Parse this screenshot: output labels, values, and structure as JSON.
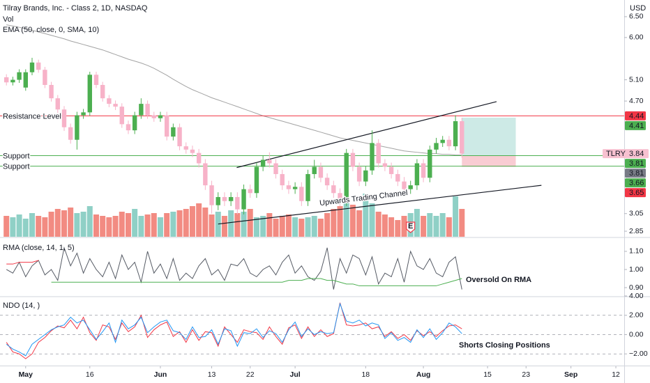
{
  "chart_data": [
    {
      "type": "candlestick",
      "title": "Tilray Brands, Inc. - Class 2, 1D, NASDAQ",
      "currency": "USD",
      "volume_label": "Vol",
      "ema_label": "EMA (50, close, 0, SMA, 10)",
      "log_scale": true,
      "ylim": [
        2.79,
        6.93
      ],
      "yticks": [
        {
          "value": 6.5,
          "label": "6.50"
        },
        {
          "value": 6,
          "label": "6.00"
        },
        {
          "value": 5.1,
          "label": "5.10"
        },
        {
          "value": 4.7,
          "label": "4.70"
        },
        3.05,
        2.85
      ],
      "xlim": [
        -1,
        96.3
      ],
      "xticks": [
        {
          "value": 3,
          "label": "May"
        },
        {
          "value": 13,
          "label": "16"
        },
        {
          "value": 24,
          "label": "Jun"
        },
        {
          "value": 32,
          "label": "13"
        },
        {
          "value": 38,
          "label": "22"
        },
        {
          "value": 45,
          "label": "Jul"
        },
        {
          "value": 56,
          "label": "18"
        },
        {
          "value": 65,
          "label": "Aug"
        },
        {
          "value": 75,
          "label": "15"
        },
        {
          "value": 81,
          "label": "23"
        },
        {
          "value": 88,
          "label": "Sep"
        },
        {
          "value": 95,
          "label": "12"
        }
      ],
      "up_color": "#4caf50",
      "down_color": "#f7b2c8",
      "volume_up_color": "#8fd0c6",
      "volume_down_color": "#f28b82",
      "open": [
        5.15,
        5.05,
        5.1,
        4.95,
        5.25,
        5.45,
        5.3,
        5.0,
        4.75,
        4.55,
        4.25,
        4.05,
        4.45,
        4.5,
        5.2,
        5.0,
        4.75,
        4.65,
        4.6,
        4.3,
        4.2,
        4.45,
        4.65,
        4.45,
        4.4,
        4.45,
        4.1,
        4.25,
        3.95,
        3.9,
        3.85,
        3.7,
        3.4,
        3.15,
        3.25,
        3.2,
        3.25,
        3.1,
        3.35,
        3.3,
        3.65,
        3.75,
        3.7,
        3.55,
        3.4,
        3.35,
        3.38,
        3.2,
        3.55,
        3.65,
        3.5,
        3.4,
        3.3,
        3.2,
        3.85,
        3.65,
        3.45,
        3.6,
        4.0,
        3.7,
        3.65,
        3.55,
        3.45,
        3.35,
        3.4,
        3.7,
        3.5,
        3.9,
        4.0,
        4.05,
        3.95,
        4.35
      ],
      "high": [
        5.21,
        5.16,
        5.31,
        5.31,
        5.55,
        5.51,
        5.36,
        5.06,
        4.81,
        4.61,
        4.31,
        4.51,
        4.56,
        5.26,
        5.26,
        5.06,
        4.81,
        4.71,
        4.66,
        4.36,
        4.51,
        4.75,
        4.71,
        4.51,
        4.51,
        4.51,
        4.31,
        4.31,
        4.01,
        3.96,
        3.91,
        3.76,
        3.46,
        3.31,
        3.31,
        3.31,
        3.31,
        3.41,
        3.41,
        3.71,
        3.81,
        3.86,
        3.76,
        3.61,
        3.46,
        3.44,
        3.44,
        3.61,
        3.75,
        3.71,
        3.56,
        3.46,
        3.36,
        3.91,
        3.91,
        3.71,
        3.66,
        4.2,
        4.06,
        3.76,
        3.71,
        3.61,
        3.51,
        3.46,
        3.76,
        3.76,
        3.96,
        4.08,
        4.11,
        4.11,
        4.45,
        4.41
      ],
      "low": [
        4.99,
        4.99,
        5.04,
        4.89,
        5.19,
        5.24,
        4.94,
        4.69,
        4.49,
        4.19,
        3.99,
        3.9,
        4.39,
        4.44,
        4.94,
        4.69,
        4.59,
        4.54,
        4.24,
        4.14,
        4.14,
        4.39,
        4.39,
        4.34,
        4.34,
        4.04,
        4.04,
        3.89,
        3.84,
        3.79,
        3.64,
        3.34,
        3.05,
        3.09,
        3.14,
        3.14,
        3.04,
        3.04,
        3.24,
        3.24,
        3.59,
        3.64,
        3.49,
        3.34,
        3.29,
        3.29,
        3.14,
        3.14,
        3.49,
        3.44,
        3.34,
        3.24,
        3.14,
        3.14,
        3.59,
        3.39,
        3.39,
        3.54,
        3.64,
        3.59,
        3.49,
        3.39,
        3.29,
        3.29,
        3.34,
        3.44,
        3.44,
        3.84,
        3.94,
        3.89,
        3.89,
        3.78
      ],
      "close": [
        5.05,
        5.1,
        5.25,
        5.25,
        5.45,
        5.3,
        5.0,
        4.75,
        4.55,
        4.25,
        4.05,
        4.45,
        4.5,
        5.2,
        5.0,
        4.75,
        4.65,
        4.6,
        4.3,
        4.2,
        4.45,
        4.65,
        4.45,
        4.4,
        4.45,
        4.1,
        4.25,
        3.95,
        3.9,
        3.85,
        3.7,
        3.4,
        3.15,
        3.25,
        3.2,
        3.25,
        3.1,
        3.35,
        3.3,
        3.65,
        3.75,
        3.7,
        3.55,
        3.4,
        3.35,
        3.38,
        3.2,
        3.55,
        3.65,
        3.5,
        3.4,
        3.3,
        3.2,
        3.85,
        3.65,
        3.45,
        3.6,
        4.0,
        3.7,
        3.65,
        3.55,
        3.45,
        3.35,
        3.4,
        3.7,
        3.5,
        3.9,
        4.0,
        4.05,
        3.95,
        4.35,
        3.84
      ],
      "volume": [
        30,
        28,
        32,
        26,
        34,
        30,
        28,
        36,
        40,
        38,
        42,
        34,
        36,
        44,
        32,
        30,
        28,
        30,
        36,
        34,
        40,
        30,
        32,
        34,
        28,
        34,
        36,
        38,
        40,
        44,
        48,
        42,
        32,
        36,
        30,
        38,
        34,
        36,
        40,
        28,
        30,
        34,
        26,
        30,
        32,
        28,
        26,
        28,
        30,
        26,
        34,
        40,
        44,
        56,
        46,
        38,
        62,
        48,
        36,
        32,
        28,
        24,
        30,
        34,
        40,
        30,
        34,
        30,
        34,
        28,
        58,
        40
      ],
      "ema": {
        "color": "#a3a3a3",
        "values": [
          6.3,
          6.27,
          6.24,
          6.21,
          6.17,
          6.13,
          6.09,
          6.05,
          6.01,
          5.97,
          5.92,
          5.88,
          5.84,
          5.8,
          5.76,
          5.72,
          5.67,
          5.62,
          5.57,
          5.52,
          5.48,
          5.44,
          5.39,
          5.33,
          5.26,
          5.19,
          5.11,
          5.04,
          4.97,
          4.91,
          4.86,
          4.81,
          4.76,
          4.72,
          4.68,
          4.64,
          4.6,
          4.56,
          4.52,
          4.48,
          4.44,
          4.41,
          4.38,
          4.35,
          4.32,
          4.29,
          4.26,
          4.23,
          4.2,
          4.17,
          4.14,
          4.11,
          4.08,
          4.06,
          4.04,
          4.02,
          4.0,
          3.98,
          3.96,
          3.94,
          3.92,
          3.9,
          3.88,
          3.87,
          3.86,
          3.85,
          3.84,
          3.84,
          3.83,
          3.83,
          3.82,
          3.82
        ]
      },
      "levels": [
        {
          "label": "Resistance Level",
          "value": 4.44,
          "color": "#f23645"
        },
        {
          "label": "Support",
          "value": 3.81,
          "color": "#4caf50"
        },
        {
          "label": "Support",
          "value": 3.66,
          "color": "#4caf50"
        }
      ],
      "trendlines": [
        {
          "x": [
            35.9,
            76.4
          ],
          "y": [
            3.64,
            4.69
          ],
          "color": "#131722"
        },
        {
          "x": [
            33.0,
            83.4
          ],
          "y": [
            2.93,
            3.4
          ],
          "color": "#131722"
        }
      ],
      "channel_label": "Upwards Trading Channel",
      "position": {
        "x": [
          71,
          79.4
        ],
        "entry": 3.81,
        "target": 4.41,
        "stop": 3.65,
        "profit_color": "#cdeae6",
        "loss_color": "#f9ccd3"
      },
      "earnings": {
        "x": 63,
        "label": "E",
        "color": "#f23645"
      },
      "price_tags": [
        {
          "value": 4.44,
          "color": "#f23645"
        },
        {
          "value": 4.41,
          "color": "#4caf50"
        },
        {
          "name": "TLRY",
          "value": 3.84,
          "color": "#f7c1d0",
          "text_color": "#131722"
        },
        {
          "value": 3.81,
          "color": "#4caf50"
        },
        {
          "value": 3.81,
          "color": "#787b86"
        },
        {
          "value": 3.66,
          "color": "#4caf50"
        },
        {
          "value": 3.65,
          "color": "#f23645"
        }
      ]
    },
    {
      "type": "line",
      "title": "RMA (close, 14, 1, 5)",
      "ylim": [
        0.854,
        1.169
      ],
      "yticks": [
        {
          "value": 1.1,
          "label": "1.10"
        },
        {
          "value": 1,
          "label": "1.00"
        },
        {
          "value": 0.9,
          "label": "0.90"
        }
      ],
      "annotation": "Oversold On RMA",
      "annotation_color": "#4caf50",
      "series": [
        {
          "color": "#555a64",
          "values": [
            1.0,
            0.98,
            1.04,
            0.96,
            1.02,
            1.05,
            0.97,
            1.0,
            0.94,
            1.12,
            1.02,
            1.09,
            0.98,
            1.06,
            1.0,
            0.96,
            1.04,
            0.95,
            1.08,
            1.0,
            1.04,
            0.93,
            1.1,
            0.98,
            1.03,
            0.95,
            1.06,
            0.94,
            0.98,
            0.95,
            1.02,
            1.06,
            0.97,
            1.0,
            0.94,
            1.03,
            1.02,
            1.06,
            0.98,
            0.96,
            1.0,
            1.02,
            0.97,
            1.04,
            1.08,
            0.98,
            1.02,
            0.96,
            0.94,
            0.99,
            1.12,
            0.89,
            1.06,
            0.98,
            1.08,
            1.06,
            0.97,
            1.07,
            0.92,
            0.98,
            0.96,
            1.06,
            0.93,
            1.1,
            1.02,
            1.0,
            1.06,
            0.98,
            0.96,
            1.04,
            1.07,
            0.89
          ]
        },
        {
          "color": "#4caf50",
          "values": [
            null,
            null,
            null,
            null,
            null,
            null,
            null,
            0.93,
            0.93,
            0.93,
            0.93,
            0.93,
            0.93,
            0.93,
            0.93,
            0.93,
            0.93,
            0.93,
            0.93,
            0.93,
            0.93,
            0.93,
            0.93,
            0.93,
            0.93,
            0.93,
            0.93,
            0.93,
            0.93,
            0.93,
            0.93,
            0.93,
            0.93,
            0.93,
            0.93,
            0.93,
            0.93,
            0.93,
            0.93,
            0.93,
            0.93,
            0.93,
            0.93,
            0.93,
            0.94,
            0.94,
            0.94,
            0.95,
            0.95,
            0.95,
            0.94,
            0.94,
            0.93,
            0.92,
            0.92,
            0.91,
            0.91,
            0.91,
            0.91,
            0.91,
            0.91,
            0.91,
            0.91,
            0.91,
            0.91,
            0.91,
            0.91,
            0.91,
            0.92,
            0.93,
            0.94,
            0.95
          ]
        },
        {
          "color": "#f23645",
          "values": [
            1.03,
            1.03,
            1.04,
            1.04,
            1.04,
            1.05,
            null,
            null,
            null,
            null,
            null,
            null,
            null,
            null,
            null,
            null,
            null,
            null,
            null,
            null,
            null,
            null,
            null,
            null,
            null,
            null,
            null,
            null,
            null,
            null,
            null,
            null,
            null,
            null,
            null,
            null,
            null,
            null,
            null,
            null,
            null,
            null,
            null,
            null,
            null,
            null,
            null,
            null,
            null,
            null,
            null,
            null,
            null,
            null,
            null,
            null,
            null,
            null,
            null,
            null,
            null,
            null,
            null,
            null,
            null,
            null,
            null,
            null,
            null,
            null,
            null,
            null
          ]
        }
      ]
    },
    {
      "type": "line",
      "title": "NDO (14, )",
      "ylim": [
        -3.21,
        4.0
      ],
      "yticks": [
        {
          "value": 4,
          "label": "4.00"
        },
        {
          "value": 2,
          "label": "2.00"
        },
        {
          "value": 0,
          "label": "0.00"
        },
        {
          "value": -2,
          "label": "−2.00"
        }
      ],
      "grid": true,
      "annotation": "Shorts Closing Positions",
      "annotation_color": "#4caf50",
      "series": [
        {
          "color": "#f23645",
          "values": [
            -0.8,
            -1.8,
            -2.0,
            -2.5,
            -2.0,
            -0.8,
            -0.3,
            0.4,
            0.9,
            0.7,
            1.5,
            0.6,
            1.8,
            0.2,
            -0.6,
            1.0,
            0.8,
            -0.5,
            1.2,
            0.3,
            0.8,
            2.0,
            -0.3,
            0.5,
            1.0,
            1.3,
            -0.2,
            0.3,
            -0.8,
            0.5,
            -0.6,
            0.3,
            0.2,
            -1.2,
            0.8,
            0.0,
            -0.8,
            0.5,
            0.3,
            0.2,
            -0.5,
            0.8,
            -0.2,
            -1.0,
            0.7,
            1.0,
            -0.4,
            0.8,
            -0.2,
            0.5,
            -0.2,
            0.1,
            3.3,
            1.0,
            0.9,
            1.0,
            1.2,
            0.6,
            0.8,
            -0.2,
            0.3,
            -0.4,
            0.0,
            -0.6,
            0.4,
            -0.1,
            0.3,
            -0.2,
            0.4,
            0.9,
            1.0,
            0.6
          ]
        },
        {
          "color": "#2196f3",
          "values": [
            -1.0,
            -1.5,
            -1.8,
            -2.2,
            -1.0,
            -0.5,
            0.0,
            0.5,
            0.8,
            1.0,
            1.8,
            1.2,
            1.5,
            0.5,
            -0.5,
            0.3,
            1.2,
            -0.8,
            1.5,
            0.6,
            1.0,
            1.8,
            0.2,
            0.8,
            1.3,
            1.5,
            0.4,
            0.2,
            -0.5,
            0.8,
            -0.3,
            -0.2,
            0.5,
            -1.0,
            0.6,
            0.4,
            -1.2,
            0.2,
            0.1,
            0.6,
            -0.3,
            0.4,
            0.1,
            -0.8,
            0.5,
            1.3,
            -0.2,
            0.6,
            0.0,
            0.3,
            0.1,
            0.2,
            3.2,
            1.4,
            1.2,
            1.5,
            0.9,
            1.2,
            1.0,
            -0.4,
            0.2,
            -0.6,
            -0.3,
            -0.8,
            0.5,
            -0.3,
            0.6,
            -0.5,
            0.2,
            1.2,
            0.8,
            0.1
          ]
        }
      ]
    }
  ]
}
